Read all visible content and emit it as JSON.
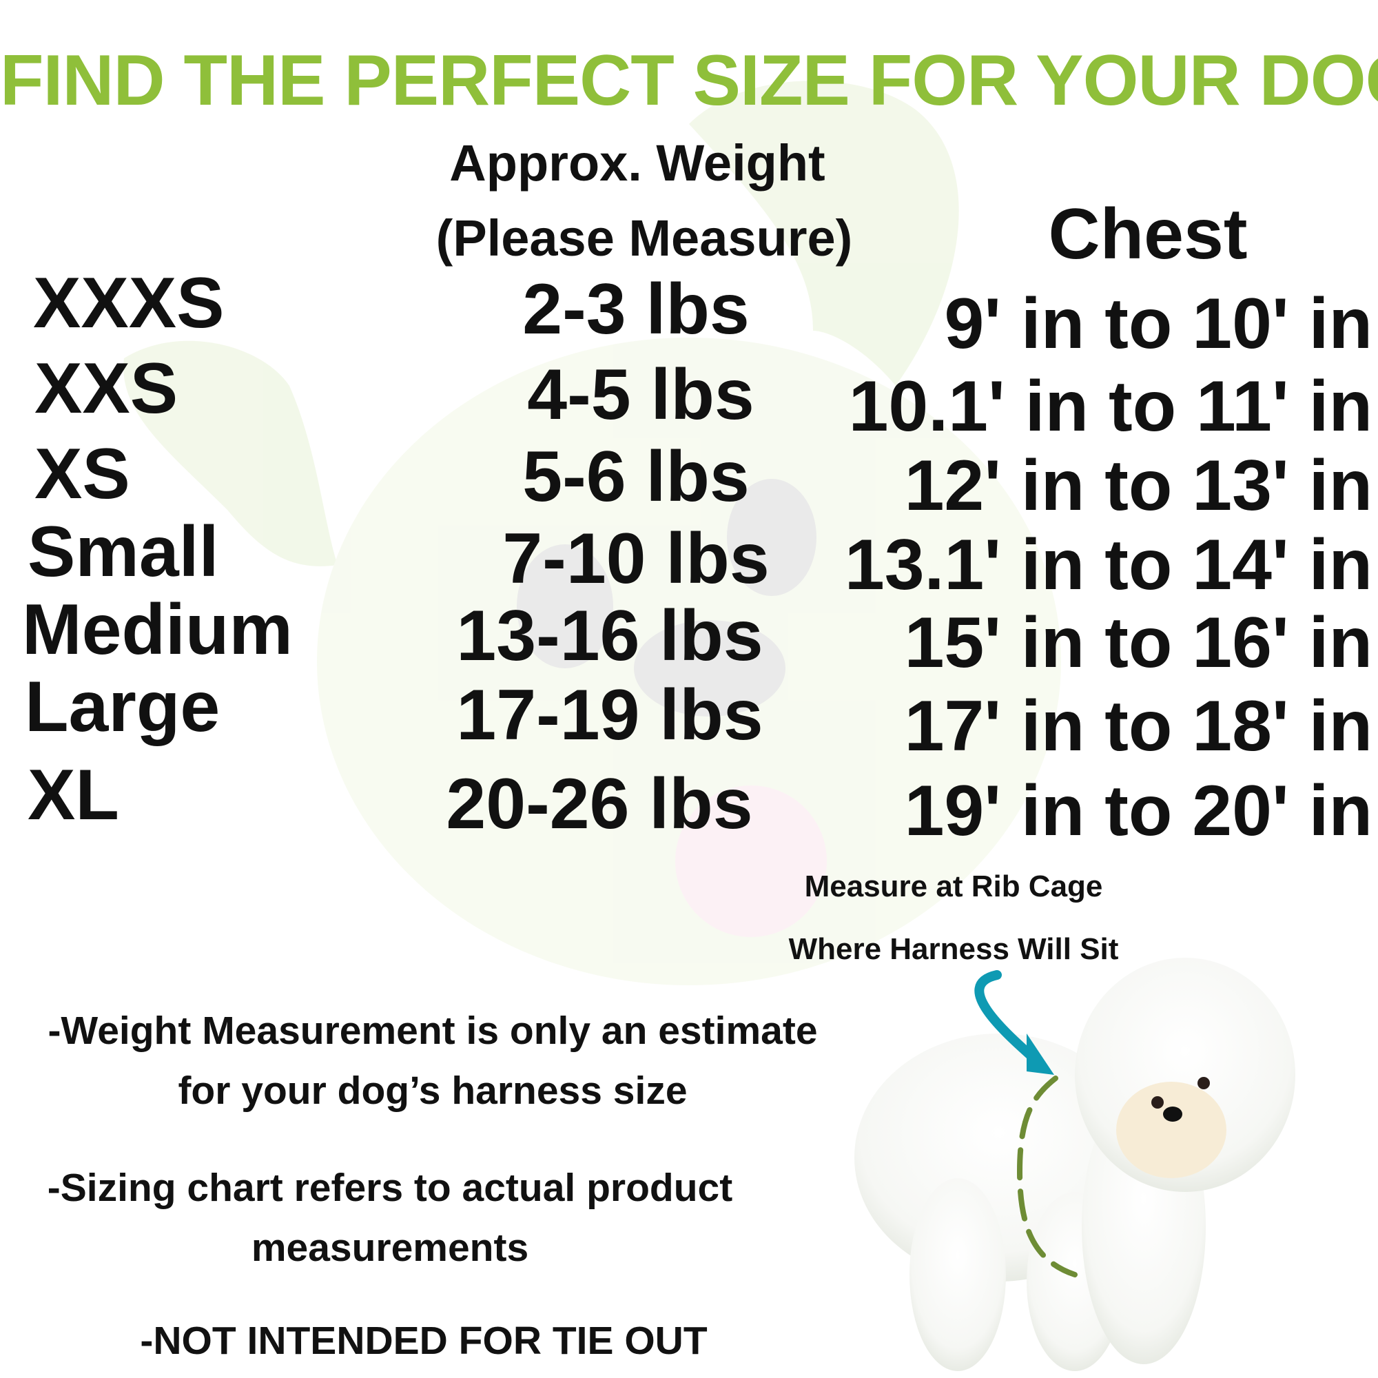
{
  "title": "FIND THE PERFECT SIZE FOR YOUR DOG",
  "colors": {
    "title": "#8fbf3a",
    "arrow": "#0e9ab3",
    "dashed_line": "#6e8c35",
    "text": "#111111"
  },
  "table": {
    "headers": {
      "weight_line1": "Approx. Weight",
      "weight_line2": "(Please Measure)",
      "chest": "Chest"
    },
    "rows": [
      {
        "size": "XXXS",
        "weight": "2-3 lbs",
        "chest": "9' in to 10' in"
      },
      {
        "size": "XXS",
        "weight": "4-5 lbs",
        "chest": "10.1' in to 11' in"
      },
      {
        "size": "XS",
        "weight": "5-6 lbs",
        "chest": "12' in to 13' in"
      },
      {
        "size": "Small",
        "weight": "7-10 lbs",
        "chest": "13.1' in to 14' in"
      },
      {
        "size": "Medium",
        "weight": "13-16 lbs",
        "chest": "15' in to 16' in"
      },
      {
        "size": "Large",
        "weight": "17-19 lbs",
        "chest": "17' in to 18' in"
      },
      {
        "size": "XL",
        "weight": "20-26 lbs",
        "chest": "19' in to 20' in"
      }
    ]
  },
  "notes": {
    "note1_line1": "-Weight Measurement is only an estimate",
    "note1_line2": "for your dog’s harness size",
    "note2_line1": "-Sizing chart refers to actual product",
    "note2_line2": "measurements",
    "note3": "-NOT INTENDED FOR TIE OUT"
  },
  "caption": {
    "line1": "Measure at Rib Cage",
    "line2": "Where Harness Will Sit"
  },
  "icons": {
    "arrow": "curved-arrow-icon",
    "dog_photo": "white-bichon-dog",
    "background": "cartoon-dog-watermark"
  }
}
